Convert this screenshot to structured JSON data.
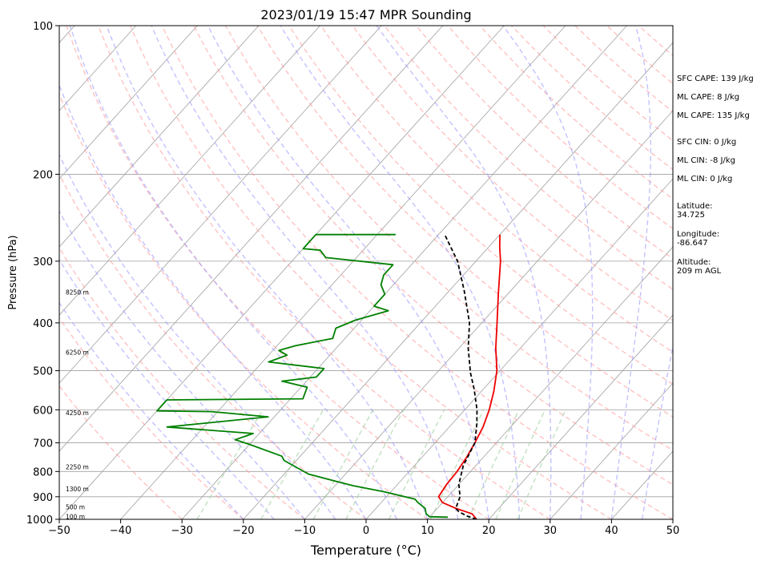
{
  "chart_data": {
    "type": "line",
    "title": "2023/01/19 15:47 MPR Sounding",
    "xlabel": "Temperature (°C)",
    "ylabel": "Pressure (hPa)",
    "xlim": [
      -50,
      50
    ],
    "ylim": [
      1000,
      100
    ],
    "y_scale": "log",
    "grid": true,
    "x_ticks": [
      "−50",
      "−40",
      "−30",
      "−20",
      "−10",
      "0",
      "10",
      "20",
      "30",
      "40",
      "50"
    ],
    "y_ticks": [
      "100",
      "200",
      "300",
      "400",
      "500",
      "600",
      "700",
      "800",
      "900",
      "1000"
    ],
    "series": [
      {
        "style": "solid",
        "color": "#ee0000",
        "points": [
          [
            18,
            1000
          ],
          [
            16.5,
            975
          ],
          [
            13,
            950
          ],
          [
            10,
            925
          ],
          [
            8.5,
            900
          ],
          [
            8,
            850
          ],
          [
            7.8,
            800
          ],
          [
            7.3,
            750
          ],
          [
            6.5,
            700
          ],
          [
            5.5,
            650
          ],
          [
            4,
            600
          ],
          [
            2,
            550
          ],
          [
            -0.5,
            500
          ],
          [
            -4,
            450
          ],
          [
            -7.5,
            400
          ],
          [
            -11.5,
            350
          ],
          [
            -16,
            300
          ],
          [
            -18.3,
            280
          ],
          [
            -20,
            265
          ]
        ]
      },
      {
        "style": "solid",
        "color": "#008000",
        "points": [
          [
            13,
            990
          ],
          [
            10,
            988
          ],
          [
            9,
            975
          ],
          [
            8,
            950
          ],
          [
            6,
            925
          ],
          [
            5,
            910
          ],
          [
            -1,
            880
          ],
          [
            -7,
            855
          ],
          [
            -10,
            840
          ],
          [
            -16,
            810
          ],
          [
            -22,
            760
          ],
          [
            -23,
            745
          ],
          [
            -30,
            705
          ],
          [
            -33,
            690
          ],
          [
            -31,
            670
          ],
          [
            -46,
            650
          ],
          [
            -31,
            620
          ],
          [
            -41,
            605
          ],
          [
            -50,
            603
          ],
          [
            -50,
            573
          ],
          [
            -28,
            570
          ],
          [
            -29,
            540
          ],
          [
            -34,
            525
          ],
          [
            -29,
            515
          ],
          [
            -29,
            495
          ],
          [
            -39,
            480
          ],
          [
            -37,
            465
          ],
          [
            -39,
            455
          ],
          [
            -37,
            445
          ],
          [
            -32,
            430
          ],
          [
            -33,
            410
          ],
          [
            -31,
            395
          ],
          [
            -27,
            378
          ],
          [
            -30,
            370
          ],
          [
            -30,
            360
          ],
          [
            -30,
            350
          ],
          [
            -32,
            335
          ],
          [
            -33,
            320
          ],
          [
            -33,
            305
          ],
          [
            -45,
            295
          ],
          [
            -47,
            285
          ],
          [
            -50,
            283
          ],
          [
            -50,
            265
          ],
          [
            -37,
            265
          ]
        ]
      },
      {
        "style": "dashed",
        "color": "#000000",
        "points": [
          [
            18,
            1000
          ],
          [
            16,
            985
          ],
          [
            14,
            965
          ],
          [
            13,
            950
          ],
          [
            12.5,
            925
          ],
          [
            12,
            900
          ],
          [
            10,
            850
          ],
          [
            8,
            780
          ],
          [
            6.5,
            700
          ],
          [
            4,
            640
          ],
          [
            2,
            600
          ],
          [
            -1.5,
            545
          ],
          [
            -4.5,
            505
          ],
          [
            -8.5,
            450
          ],
          [
            -12,
            400
          ],
          [
            -17.5,
            345
          ],
          [
            -23,
            300
          ],
          [
            -29,
            265
          ]
        ]
      }
    ],
    "height_labels": [
      "8250 m",
      "6250 m",
      "4250 m",
      "2250 m",
      "1300 m",
      "500 m",
      "100 m"
    ],
    "indices": [
      "SFC CAPE: 139 J/kg",
      "ML CAPE: 8 J/kg",
      "ML CAPE: 135 J/kg",
      "SFC CIN: 0 J/kg",
      "ML CIN: -8 J/kg",
      "ML CIN: 0 J/kg",
      "Latitude:\n34.725",
      "Longitude:\n-86.647",
      "Altitude:\n209 m AGL"
    ],
    "colors": {
      "temperature": "#ee0000",
      "dewpoint": "#008000",
      "parcel": "#000000",
      "dry_adiabats": "#ff9999",
      "moist_adiabats": "#9999ff",
      "mixing_ratio": "#99cc99",
      "isotherms": "#a0a0a0"
    }
  }
}
